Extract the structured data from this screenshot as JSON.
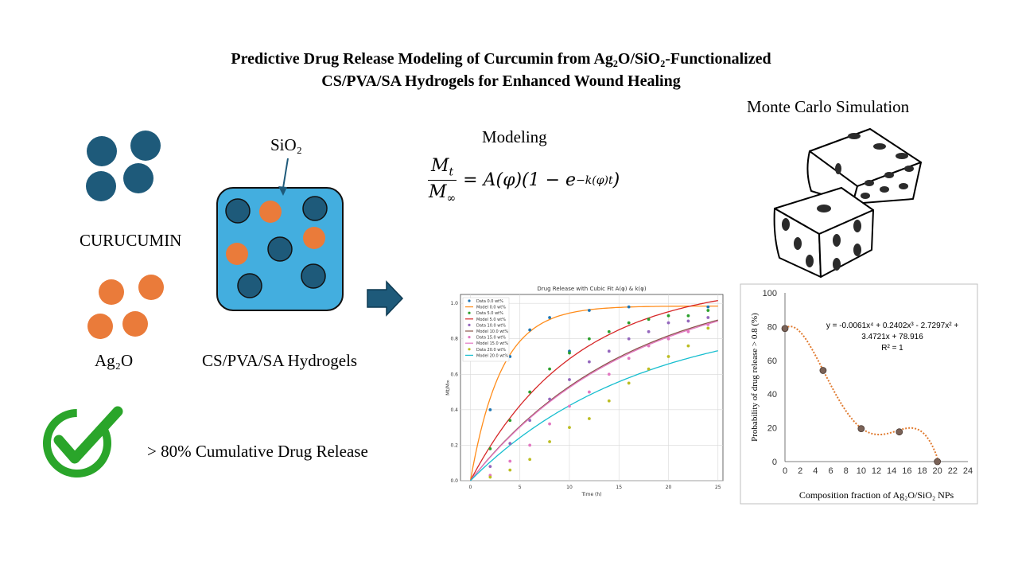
{
  "title": {
    "line1": "Predictive Drug Release Modeling of Curcumin from Ag₂O/SiO₂-Functionalized",
    "line2": "CS/PVA/SA Hydrogels for Enhanced Wound Healing"
  },
  "labels": {
    "curcumin": "CURUCUMIN",
    "ag2o": "Ag₂O",
    "sio2": "SiO₂",
    "hydrogel": "CS/PVA/SA Hydrogels",
    "modeling": "Modeling",
    "monte_carlo": "Monte Carlo Simulation",
    "release_claim": "> 80% Cumulative Drug Release"
  },
  "equation": {
    "numerator": "M",
    "numerator_sub": "t",
    "denominator": "M",
    "denominator_sub": "∞",
    "rhs_part1": "= A(φ)(1 − e",
    "rhs_exponent": "−k(φ)t",
    "rhs_part2": ")"
  },
  "colors": {
    "curcumin_particle": "#1e5a7a",
    "ag2o_particle": "#ea7b3a",
    "hydrogel_fill": "#43aedf",
    "arrow": "#1e5a7a",
    "check": "#2aa52a",
    "trend": "#e07a2f",
    "point": "#7a6257"
  },
  "chart_data": [
    {
      "type": "line",
      "title": "Drug Release with Cubic Fit A(φ) & k(φ)",
      "xlabel": "Time (h)",
      "ylabel": "Mt/M∞",
      "xlim": [
        -1,
        25.5
      ],
      "ylim": [
        0,
        1.05
      ],
      "xticks": [
        0,
        5,
        10,
        15,
        20,
        25
      ],
      "yticks": [
        0.0,
        0.2,
        0.4,
        0.6,
        0.8,
        1.0
      ],
      "grid": true,
      "legend_position": "top-left",
      "model_series": [
        {
          "name": "Model 0.0 wt%",
          "A": 0.985,
          "k": 0.32,
          "color": "#ff8c1a"
        },
        {
          "name": "Model 5.0 wt%",
          "A": 1.12,
          "k": 0.095,
          "color": "#d62728"
        },
        {
          "name": "Model 10.0 wt%",
          "A": 1.15,
          "k": 0.062,
          "color": "#8c564b"
        },
        {
          "name": "Model 15.0 wt%",
          "A": 1.15,
          "k": 0.061,
          "color": "#e377c2"
        },
        {
          "name": "Model 20.0 wt%",
          "A": 0.95,
          "k": 0.059,
          "color": "#17becf"
        }
      ],
      "data_series": [
        {
          "name": "Data 0.0 wt%",
          "color": "#1f77b4",
          "x": [
            2,
            4,
            6,
            8,
            10,
            12,
            16,
            24
          ],
          "y": [
            0.4,
            0.7,
            0.85,
            0.92,
            0.73,
            0.96,
            0.98,
            0.98
          ]
        },
        {
          "name": "Data 5.0 wt%",
          "color": "#2ca02c",
          "x": [
            2,
            4,
            6,
            8,
            10,
            12,
            14,
            16,
            18,
            20,
            22,
            24
          ],
          "y": [
            0.18,
            0.34,
            0.5,
            0.63,
            0.72,
            0.8,
            0.84,
            0.89,
            0.91,
            0.93,
            0.93,
            0.96
          ]
        },
        {
          "name": "Data 10.0 wt%",
          "color": "#9467bd",
          "x": [
            2,
            4,
            6,
            8,
            10,
            12,
            14,
            16,
            18,
            20,
            22,
            24
          ],
          "y": [
            0.08,
            0.21,
            0.34,
            0.46,
            0.57,
            0.67,
            0.73,
            0.8,
            0.84,
            0.89,
            0.9,
            0.92
          ]
        },
        {
          "name": "Data 15.0 wt%",
          "color": "#e377c2",
          "x": [
            2,
            4,
            6,
            8,
            10,
            12,
            14,
            16,
            18,
            20,
            22,
            24
          ],
          "y": [
            0.03,
            0.11,
            0.2,
            0.32,
            0.42,
            0.5,
            0.6,
            0.69,
            0.76,
            0.8,
            0.84,
            0.88
          ]
        },
        {
          "name": "Data 20.0 wt%",
          "color": "#bcbd22",
          "x": [
            2,
            4,
            6,
            8,
            10,
            12,
            14,
            16,
            18,
            20,
            22,
            24
          ],
          "y": [
            0.02,
            0.06,
            0.12,
            0.22,
            0.3,
            0.35,
            0.45,
            0.55,
            0.63,
            0.7,
            0.76,
            0.86
          ]
        }
      ],
      "legend": [
        "Data 0.0 wt%",
        "Model 0.0 wt%",
        "Data 5.0 wt%",
        "Model 5.0 wt%",
        "Data 10.0 wt%",
        "Model 10.0 wt%",
        "Data 15.0 wt%",
        "Model 15.0 wt%",
        "Data 20.0 wt%",
        "Model 20.0 wt%"
      ]
    },
    {
      "type": "scatter",
      "xlabel": "Composition fraction of Ag₂O/SiO₂ NPs",
      "ylabel": "Probability of drug release > 0.8 (%)",
      "xlim": [
        0,
        24
      ],
      "ylim": [
        0,
        100
      ],
      "xticks": [
        0,
        2,
        4,
        6,
        8,
        10,
        12,
        14,
        16,
        18,
        20,
        22,
        24
      ],
      "yticks": [
        0,
        20,
        40,
        60,
        80,
        100
      ],
      "points": [
        {
          "x": 0,
          "y": 78.9
        },
        {
          "x": 5,
          "y": 54
        },
        {
          "x": 10,
          "y": 19.5
        },
        {
          "x": 15,
          "y": 17.6
        },
        {
          "x": 20,
          "y": 0
        }
      ],
      "trendline_coefficients": [
        -0.0061,
        0.2402,
        -2.7297,
        3.4721,
        78.916
      ],
      "equation_line1": "y = -0.0061x⁴ + 0.2402x³ - 2.7297x² +",
      "equation_line2": "3.4721x + 78.916",
      "r2": "R² = 1"
    }
  ]
}
